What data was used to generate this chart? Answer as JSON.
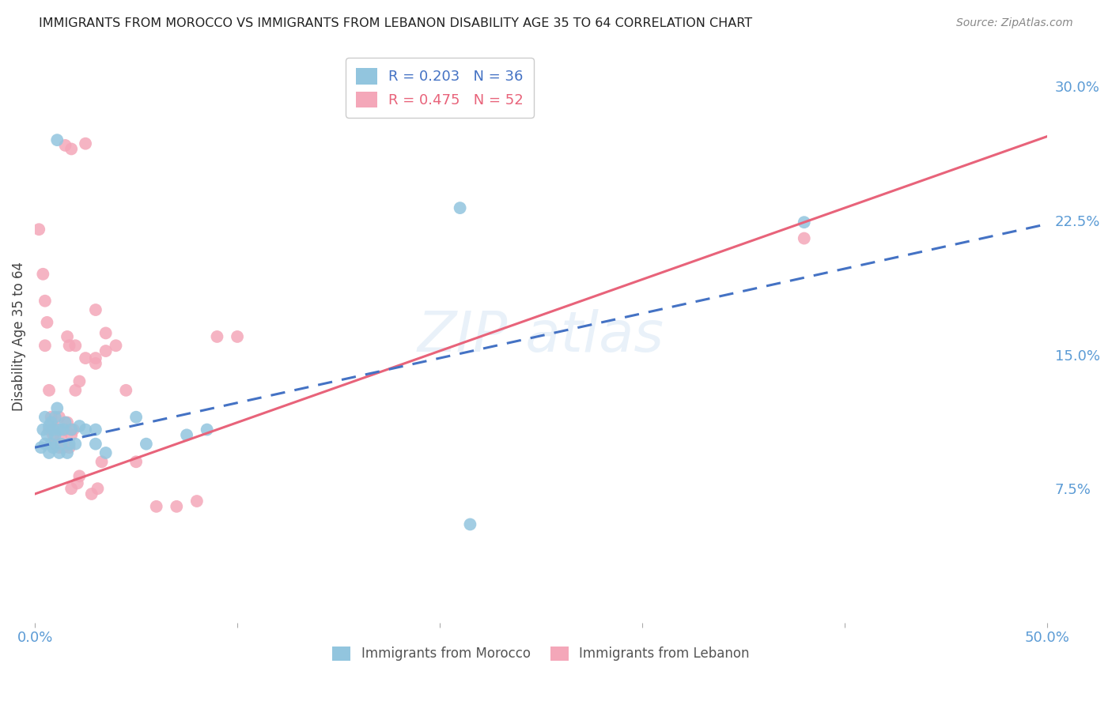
{
  "title": "IMMIGRANTS FROM MOROCCO VS IMMIGRANTS FROM LEBANON DISABILITY AGE 35 TO 64 CORRELATION CHART",
  "source": "Source: ZipAtlas.com",
  "tick_label_color": "#5b9bd5",
  "ylabel": "Disability Age 35 to 64",
  "xlim": [
    0.0,
    0.5
  ],
  "ylim": [
    0.0,
    0.32
  ],
  "ytick_labels_right": [
    "30.0%",
    "22.5%",
    "15.0%",
    "7.5%"
  ],
  "yticks_right": [
    0.3,
    0.225,
    0.15,
    0.075
  ],
  "morocco_R": 0.203,
  "morocco_N": 36,
  "lebanon_R": 0.475,
  "lebanon_N": 52,
  "morocco_color": "#92c5de",
  "lebanon_color": "#f4a7b9",
  "morocco_line_color": "#4472c4",
  "lebanon_line_color": "#e8637a",
  "background_color": "#ffffff",
  "grid_color": "#cccccc",
  "morocco_line": [
    0.0,
    0.098,
    0.5,
    0.223
  ],
  "lebanon_line": [
    0.0,
    0.072,
    0.5,
    0.272
  ],
  "morocco_x": [
    0.003,
    0.004,
    0.005,
    0.005,
    0.006,
    0.007,
    0.007,
    0.008,
    0.008,
    0.009,
    0.009,
    0.01,
    0.01,
    0.011,
    0.012,
    0.012,
    0.013,
    0.014,
    0.015,
    0.016,
    0.017,
    0.018,
    0.02,
    0.022,
    0.025,
    0.03,
    0.035,
    0.05,
    0.055,
    0.075,
    0.085,
    0.21,
    0.215,
    0.38,
    0.011,
    0.03
  ],
  "morocco_y": [
    0.098,
    0.108,
    0.1,
    0.115,
    0.105,
    0.095,
    0.11,
    0.1,
    0.112,
    0.098,
    0.108,
    0.105,
    0.115,
    0.27,
    0.108,
    0.095,
    0.1,
    0.108,
    0.112,
    0.095,
    0.1,
    0.108,
    0.1,
    0.11,
    0.108,
    0.1,
    0.095,
    0.115,
    0.1,
    0.105,
    0.108,
    0.232,
    0.055,
    0.224,
    0.12,
    0.108
  ],
  "lebanon_x": [
    0.002,
    0.004,
    0.005,
    0.005,
    0.006,
    0.007,
    0.007,
    0.008,
    0.008,
    0.009,
    0.009,
    0.01,
    0.01,
    0.011,
    0.012,
    0.012,
    0.013,
    0.014,
    0.015,
    0.016,
    0.017,
    0.018,
    0.019,
    0.02,
    0.022,
    0.025,
    0.03,
    0.033,
    0.035,
    0.04,
    0.045,
    0.05,
    0.06,
    0.07,
    0.08,
    0.09,
    0.1,
    0.015,
    0.018,
    0.025,
    0.03,
    0.035,
    0.016,
    0.02,
    0.03,
    0.018,
    0.021,
    0.022,
    0.031,
    0.028,
    0.38,
    0.017
  ],
  "lebanon_y": [
    0.22,
    0.195,
    0.18,
    0.155,
    0.168,
    0.13,
    0.108,
    0.108,
    0.115,
    0.105,
    0.11,
    0.108,
    0.1,
    0.108,
    0.115,
    0.098,
    0.105,
    0.098,
    0.108,
    0.112,
    0.098,
    0.105,
    0.108,
    0.13,
    0.135,
    0.148,
    0.148,
    0.09,
    0.152,
    0.155,
    0.13,
    0.09,
    0.065,
    0.065,
    0.068,
    0.16,
    0.16,
    0.267,
    0.265,
    0.268,
    0.175,
    0.162,
    0.16,
    0.155,
    0.145,
    0.075,
    0.078,
    0.082,
    0.075,
    0.072,
    0.215,
    0.155
  ]
}
